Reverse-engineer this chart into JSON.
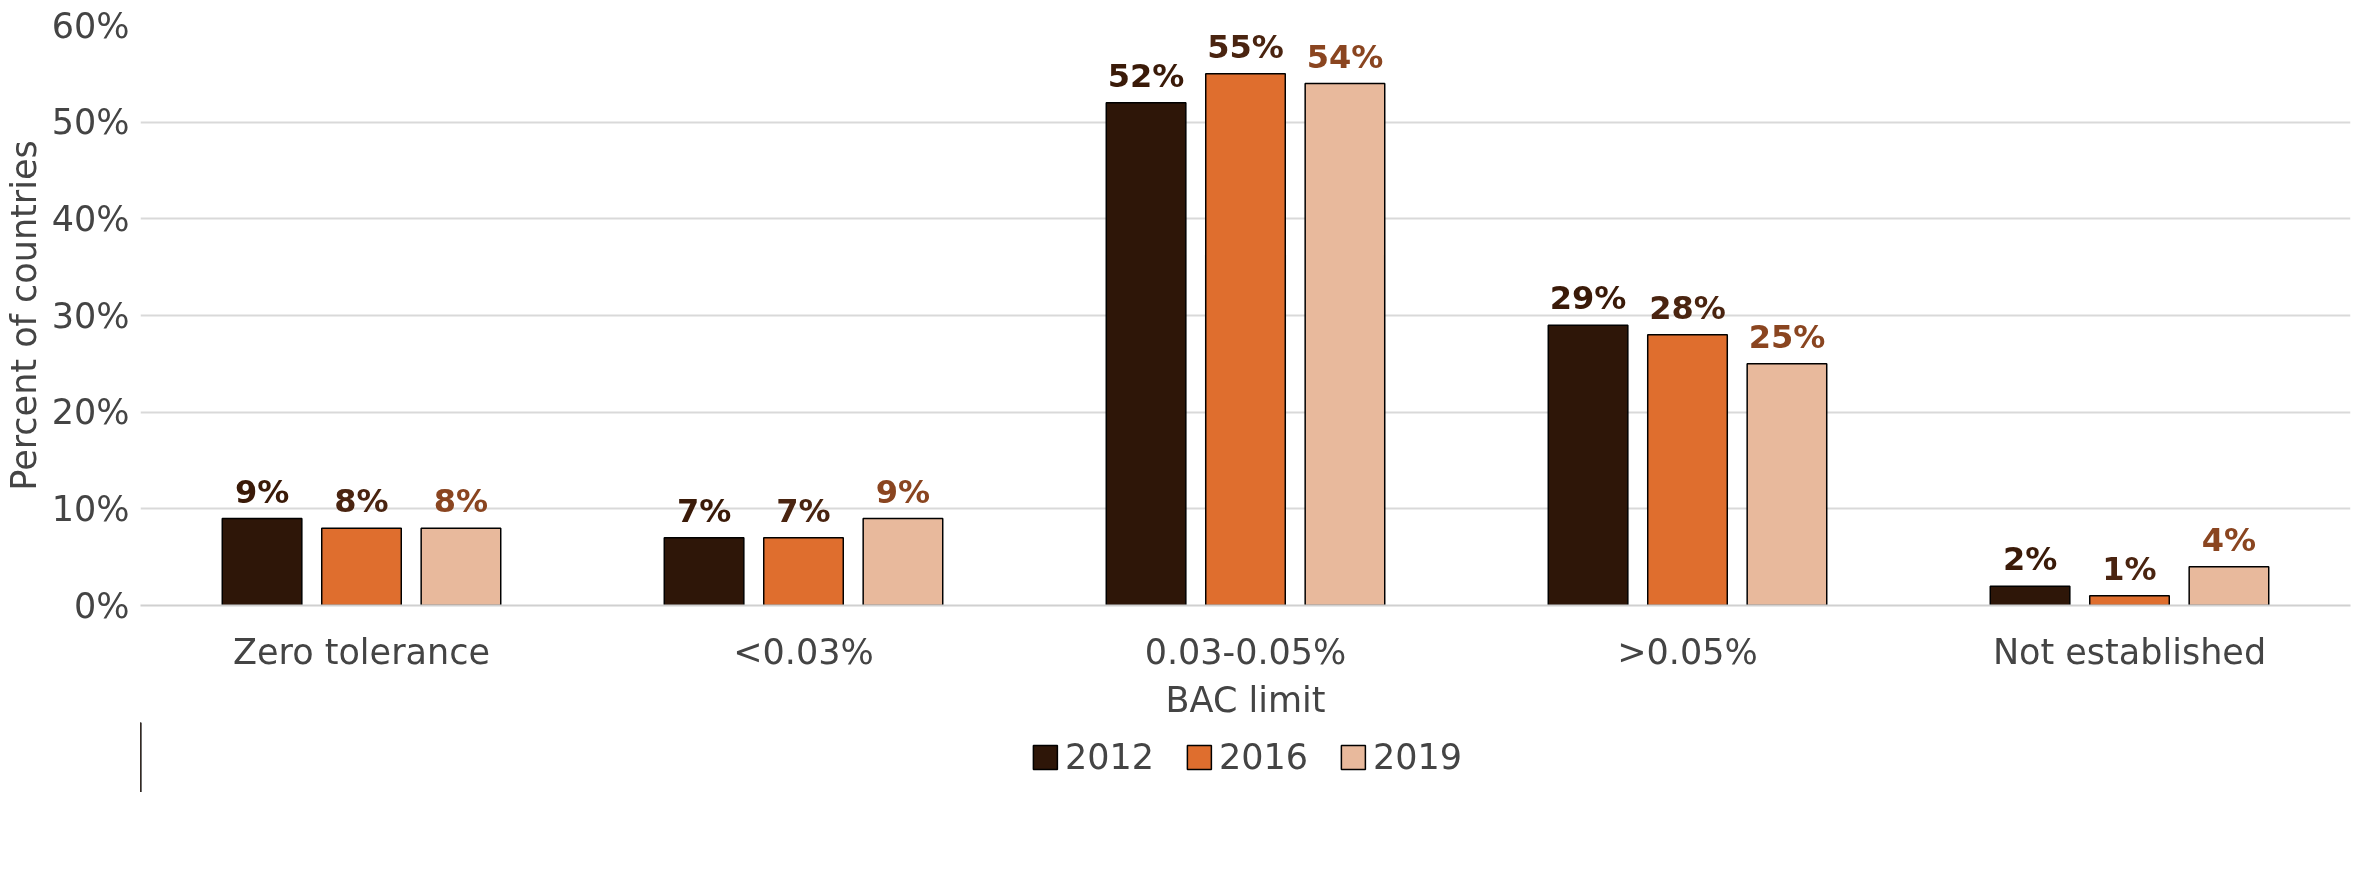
{
  "chart_data": {
    "type": "bar",
    "xlabel": "BAC limit",
    "ylabel": "Percent of countries",
    "categories": [
      "Zero tolerance",
      "<0.03%",
      "0.03-0.05%",
      ">0.05%",
      "Not established"
    ],
    "series": [
      {
        "name": "2012",
        "color": "#2e1608",
        "values": [
          9,
          7,
          52,
          29,
          2
        ],
        "value_labels": [
          "9%",
          "7%",
          "52%",
          "29%",
          "2%"
        ]
      },
      {
        "name": "2016",
        "color": "#df6e2e",
        "values": [
          8,
          7,
          55,
          28,
          1
        ],
        "value_labels": [
          "8%",
          "7%",
          "55%",
          "28%",
          "1%"
        ]
      },
      {
        "name": "2019",
        "color": "#e8b99c",
        "values": [
          8,
          9,
          54,
          25,
          4
        ],
        "value_labels": [
          "8%",
          "9%",
          "54%",
          "25%",
          "4%"
        ]
      }
    ],
    "ylim": [
      0,
      60
    ],
    "yticks": [
      {
        "value": 0,
        "label": "0%"
      },
      {
        "value": 10,
        "label": "10%"
      },
      {
        "value": 20,
        "label": "20%"
      },
      {
        "value": 30,
        "label": "30%"
      },
      {
        "value": 40,
        "label": "40%"
      },
      {
        "value": 50,
        "label": "50%"
      },
      {
        "value": 60,
        "label": "60%"
      }
    ],
    "grid": "y",
    "legend": "bottom"
  }
}
